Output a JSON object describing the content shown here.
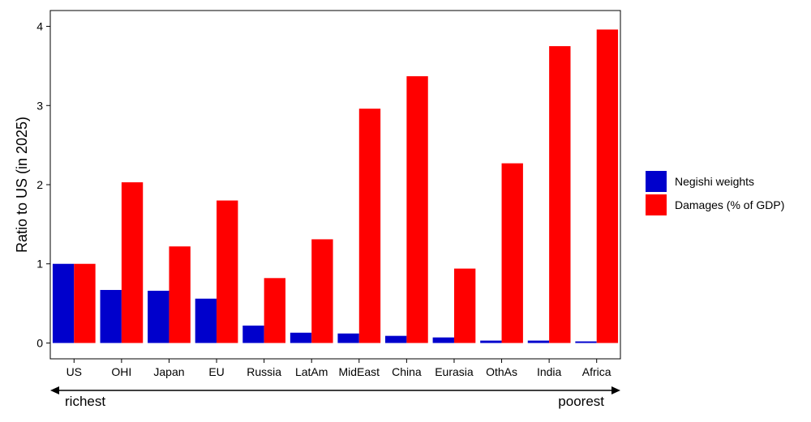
{
  "chart_data": {
    "type": "bar",
    "title": "",
    "xlabel": "",
    "ylabel": "Ratio to US (in 2025)",
    "categories": [
      "US",
      "OHI",
      "Japan",
      "EU",
      "Russia",
      "LatAm",
      "MidEast",
      "China",
      "Eurasia",
      "OthAs",
      "India",
      "Africa"
    ],
    "series": [
      {
        "name": "Negishi weights",
        "color": "#0000cc",
        "values": [
          1.0,
          0.67,
          0.66,
          0.56,
          0.22,
          0.13,
          0.12,
          0.09,
          0.07,
          0.03,
          0.03,
          0.02
        ]
      },
      {
        "name": "Damages (% of GDP)",
        "color": "#ff0000",
        "values": [
          1.0,
          2.03,
          1.22,
          1.8,
          0.82,
          1.31,
          2.96,
          3.37,
          0.94,
          2.27,
          3.75,
          3.96
        ]
      }
    ],
    "ylim": [
      -0.2,
      4.2
    ],
    "yticks": [
      0,
      1,
      2,
      3,
      4
    ],
    "grid": false,
    "legend_position": "right",
    "arrow": {
      "left_label": "richest",
      "right_label": "poorest"
    }
  }
}
